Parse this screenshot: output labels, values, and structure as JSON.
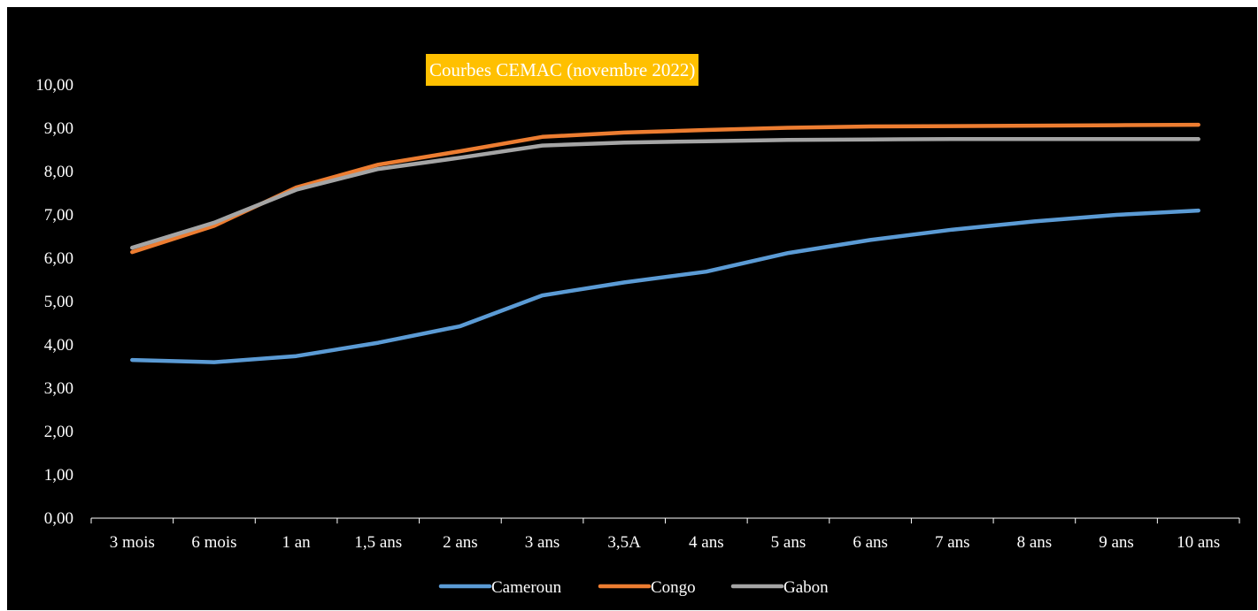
{
  "chart_data": {
    "type": "line",
    "title": "Courbes CEMAC (novembre 2022)",
    "xlabel": "",
    "ylabel": "",
    "categories": [
      "3 mois",
      "6 mois",
      "1 an",
      "1,5 ans",
      "2 ans",
      "3 ans",
      "3,5A",
      "4 ans",
      "5 ans",
      "6 ans",
      "7 ans",
      "8 ans",
      "9 ans",
      "10 ans"
    ],
    "ylim": [
      0,
      10
    ],
    "yticks": [
      "0,00",
      "1,00",
      "2,00",
      "3,00",
      "4,00",
      "5,00",
      "6,00",
      "7,00",
      "8,00",
      "9,00",
      "10,00"
    ],
    "grid": false,
    "legend_position": "bottom",
    "background": "#000000",
    "title_background": "#ffc000",
    "series": [
      {
        "name": "Cameroun",
        "color": "#5b9bd5",
        "values": [
          3.65,
          3.6,
          3.74,
          4.05,
          4.43,
          5.14,
          5.44,
          5.69,
          6.12,
          6.42,
          6.66,
          6.85,
          7.0,
          7.1
        ]
      },
      {
        "name": "Congo",
        "color": "#ed7d31",
        "values": [
          6.14,
          6.75,
          7.63,
          8.16,
          8.47,
          8.8,
          8.9,
          8.96,
          9.01,
          9.04,
          9.05,
          9.06,
          9.07,
          9.08
        ]
      },
      {
        "name": "Gabon",
        "color": "#a5a5a5",
        "values": [
          6.24,
          6.82,
          7.58,
          8.06,
          8.32,
          8.6,
          8.67,
          8.7,
          8.73,
          8.74,
          8.75,
          8.75,
          8.75,
          8.75
        ]
      }
    ]
  }
}
